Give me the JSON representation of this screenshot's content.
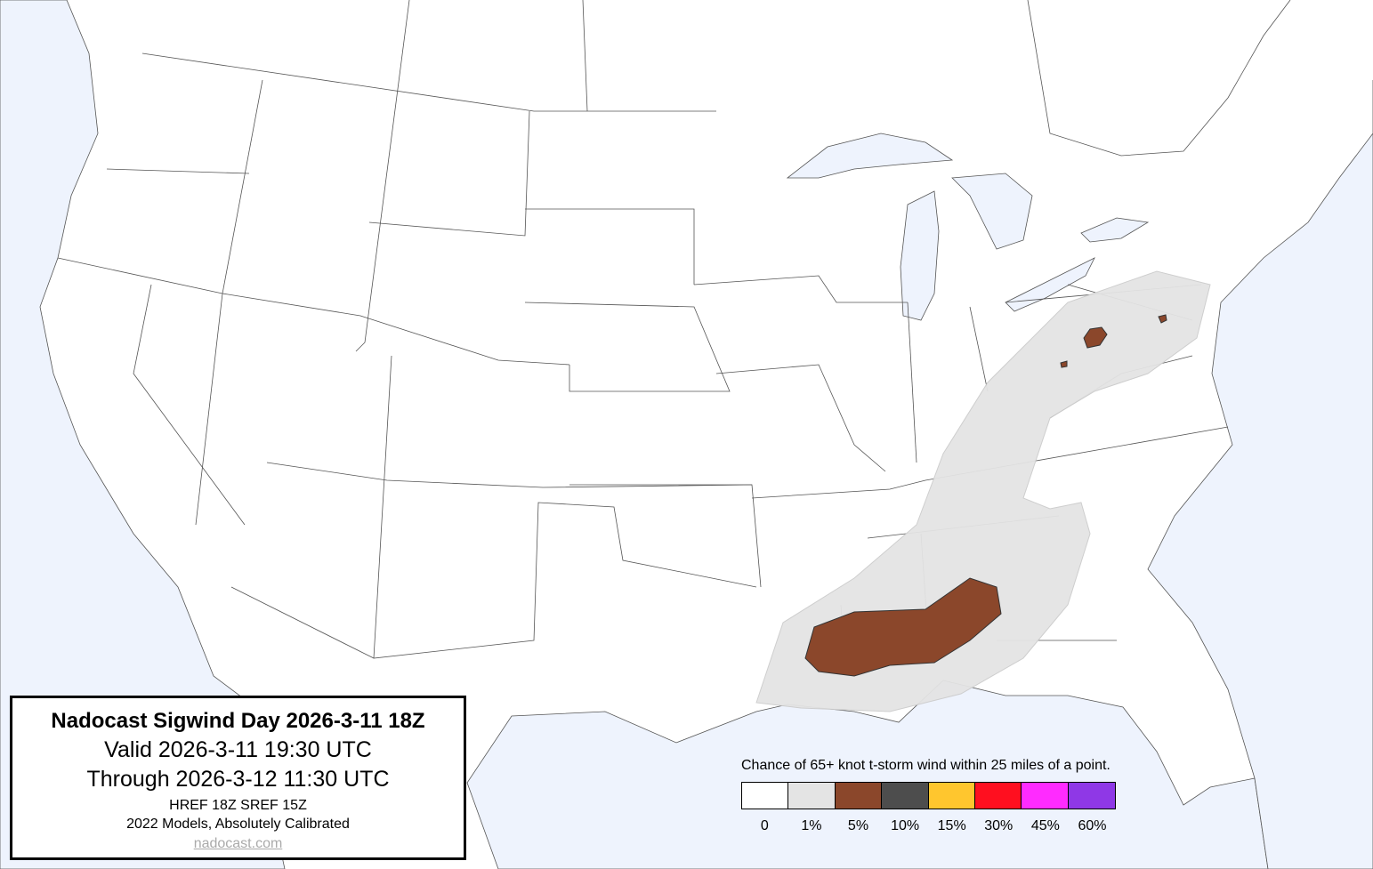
{
  "title_box": {
    "title": "Nadocast Sigwind Day 2026-3-11 18Z",
    "valid": "Valid 2026-3-11 19:30 UTC",
    "through": "Through 2026-3-12 11:30 UTC",
    "models": "HREF 18Z SREF 15Z",
    "calibration": "2022 Models, Absolutely Calibrated",
    "site": "nadocast.com"
  },
  "legend": {
    "title": "Chance of 65+ knot t-storm wind within 25 miles of a point.",
    "items": [
      {
        "label": "0",
        "color": "#ffffff"
      },
      {
        "label": "1%",
        "color": "#e4e4e4"
      },
      {
        "label": "5%",
        "color": "#8b472b"
      },
      {
        "label": "10%",
        "color": "#4d4d4d"
      },
      {
        "label": "15%",
        "color": "#ffc62e"
      },
      {
        "label": "30%",
        "color": "#ff0f1f"
      },
      {
        "label": "45%",
        "color": "#ff2bff"
      },
      {
        "label": "60%",
        "color": "#8f38e6"
      }
    ]
  },
  "map": {
    "water_color": "#eef3fd",
    "land_color": "#ffffff",
    "risk_areas": [
      {
        "level": "1%",
        "region": "Lower Mississippi Valley to Ohio Valley and Pennsylvania"
      },
      {
        "level": "5%",
        "region": "Louisiana, Mississippi, Alabama; western Pennsylvania"
      }
    ]
  }
}
